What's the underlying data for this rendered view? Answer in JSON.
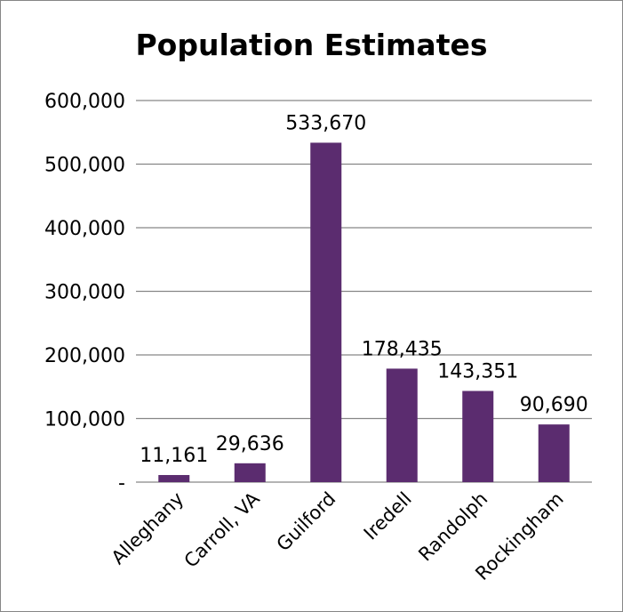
{
  "chart_data": {
    "type": "bar",
    "title": "Population Estimates",
    "categories": [
      "Alleghany",
      "Carroll, VA",
      "Guilford",
      "Iredell",
      "Randolph",
      "Rockingham"
    ],
    "values": [
      11161,
      29636,
      533670,
      178435,
      143351,
      90690
    ],
    "data_labels": [
      "11,161",
      "29,636",
      "533,670",
      "178,435",
      "143,351",
      "90,690"
    ],
    "y_ticks": [
      0,
      100000,
      200000,
      300000,
      400000,
      500000,
      600000
    ],
    "y_tick_labels": [
      "-",
      "100,000",
      "200,000",
      "300,000",
      "400,000",
      "500,000",
      "600,000"
    ],
    "ylim": [
      0,
      600000
    ],
    "xlabel": "",
    "ylabel": "",
    "grid": true,
    "legend": "none",
    "bar_color": "#5B2C6F",
    "grid_color": "#868686"
  }
}
